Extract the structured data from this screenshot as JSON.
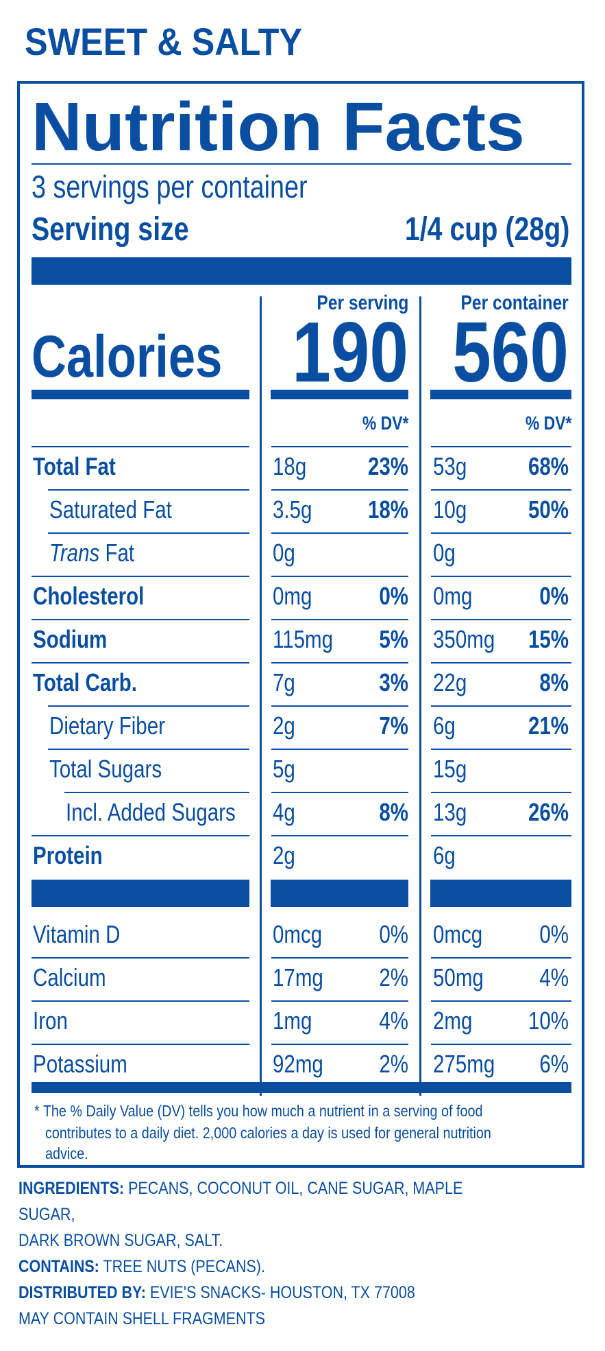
{
  "flavor": "SWEET & SALTY",
  "title": "Nutrition Facts",
  "servings_per_container": "3 servings per container",
  "serving_size_label": "Serving size",
  "serving_size_value": "1/4 cup (28g)",
  "calories_label": "Calories",
  "per_serving_label": "Per serving",
  "per_container_label": "Per container",
  "calories_serving": "190",
  "calories_container": "560",
  "dv_label": "% DV*",
  "rows": [
    {
      "label": "Total Fat",
      "s": "18g",
      "sp": "23%",
      "c": "53g",
      "cp": "68%"
    },
    {
      "label": "Saturated Fat",
      "s": "3.5g",
      "sp": "18%",
      "c": "10g",
      "cp": "50%"
    },
    {
      "label_italic": "Trans",
      "label": "Fat",
      "s": "0g",
      "sp": "",
      "c": "0g",
      "cp": ""
    },
    {
      "label": "Cholesterol",
      "s": "0mg",
      "sp": "0%",
      "c": "0mg",
      "cp": "0%"
    },
    {
      "label": "Sodium",
      "s": "115mg",
      "sp": "5%",
      "c": "350mg",
      "cp": "15%"
    },
    {
      "label": "Total Carb.",
      "s": "7g",
      "sp": "3%",
      "c": "22g",
      "cp": "8%"
    },
    {
      "label": "Dietary Fiber",
      "s": "2g",
      "sp": "7%",
      "c": "6g",
      "cp": "21%"
    },
    {
      "label": "Total Sugars",
      "s": "5g",
      "sp": "",
      "c": "15g",
      "cp": ""
    },
    {
      "label": "Incl. Added Sugars",
      "s": "4g",
      "sp": "8%",
      "c": "13g",
      "cp": "26%"
    },
    {
      "label": "Protein",
      "s": "2g",
      "sp": "",
      "c": "6g",
      "cp": ""
    }
  ],
  "vitamins": [
    {
      "label": "Vitamin D",
      "s": "0mcg",
      "sp": "0%",
      "c": "0mcg",
      "cp": "0%"
    },
    {
      "label": "Calcium",
      "s": "17mg",
      "sp": "2%",
      "c": "50mg",
      "cp": "4%"
    },
    {
      "label": "Iron",
      "s": "1mg",
      "sp": "4%",
      "c": "2mg",
      "cp": "10%"
    },
    {
      "label": "Potassium",
      "s": "92mg",
      "sp": "2%",
      "c": "275mg",
      "cp": "6%"
    }
  ],
  "footnote_line1": "* The % Daily Value (DV) tells you how much a nutrient in a serving of food",
  "footnote_line2": "contributes to a daily diet. 2,000 calories a day is used for general nutrition advice.",
  "ingredients_label": "INGREDIENTS:",
  "ingredients_text1": "PECANS, COCONUT OIL, CANE SUGAR, MAPLE SUGAR,",
  "ingredients_text2": "DARK BROWN SUGAR, SALT.",
  "contains_label": "CONTAINS:",
  "contains_text": "TREE NUTS (PECANS).",
  "distributed_label": "DISTRIBUTED BY:",
  "distributed_text": "EVIE'S SNACKS- HOUSTON, TX 77008",
  "warning": "MAY CONTAIN SHELL FRAGMENTS",
  "colors": {
    "brand_blue": "#0a4ea2"
  }
}
